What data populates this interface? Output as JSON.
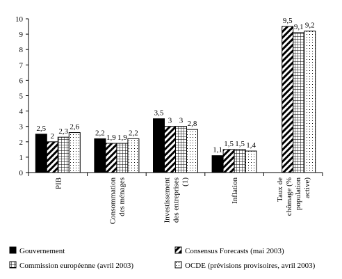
{
  "chart_data": {
    "type": "bar",
    "title": "",
    "xlabel": "",
    "ylabel": "",
    "ylim": [
      0,
      10
    ],
    "yticks": [
      "0",
      "1",
      "2",
      "3",
      "4",
      "5",
      "6",
      "7",
      "8",
      "9",
      "10"
    ],
    "grid": false,
    "legend_position": "bottom",
    "categories": [
      [
        "PIB"
      ],
      [
        "Consommation",
        "des ménages"
      ],
      [
        "Investissement",
        "des entreprises",
        "(1)"
      ],
      [
        "Inflation"
      ],
      [
        "Taux de",
        "chômage (%",
        "population",
        "active)"
      ]
    ],
    "series": [
      {
        "name": "Gouvernement",
        "pattern": "solid",
        "values": [
          2.5,
          2.2,
          3.5,
          1.1,
          null
        ],
        "labels": [
          "2,5",
          "2,2",
          "3,5",
          "1,1",
          ""
        ]
      },
      {
        "name": "Consensus Forecasts (mai 2003)",
        "pattern": "diagonal",
        "values": [
          2.0,
          1.9,
          3.0,
          1.5,
          9.5
        ],
        "labels": [
          "2",
          "1,9",
          "3",
          "1,5",
          "9,5"
        ]
      },
      {
        "name": "Commission européenne (avril 2003)",
        "pattern": "grid",
        "values": [
          2.3,
          1.9,
          3.0,
          1.5,
          9.1
        ],
        "labels": [
          "2,3",
          "1,9",
          "3",
          "1,5",
          "9,1"
        ]
      },
      {
        "name": "OCDE (prévisions provisoires, avril 2003)",
        "pattern": "dots",
        "values": [
          2.6,
          2.2,
          2.8,
          1.4,
          9.2
        ],
        "labels": [
          "2,6",
          "2,2",
          "2,8",
          "1,4",
          "9,2"
        ]
      }
    ]
  }
}
